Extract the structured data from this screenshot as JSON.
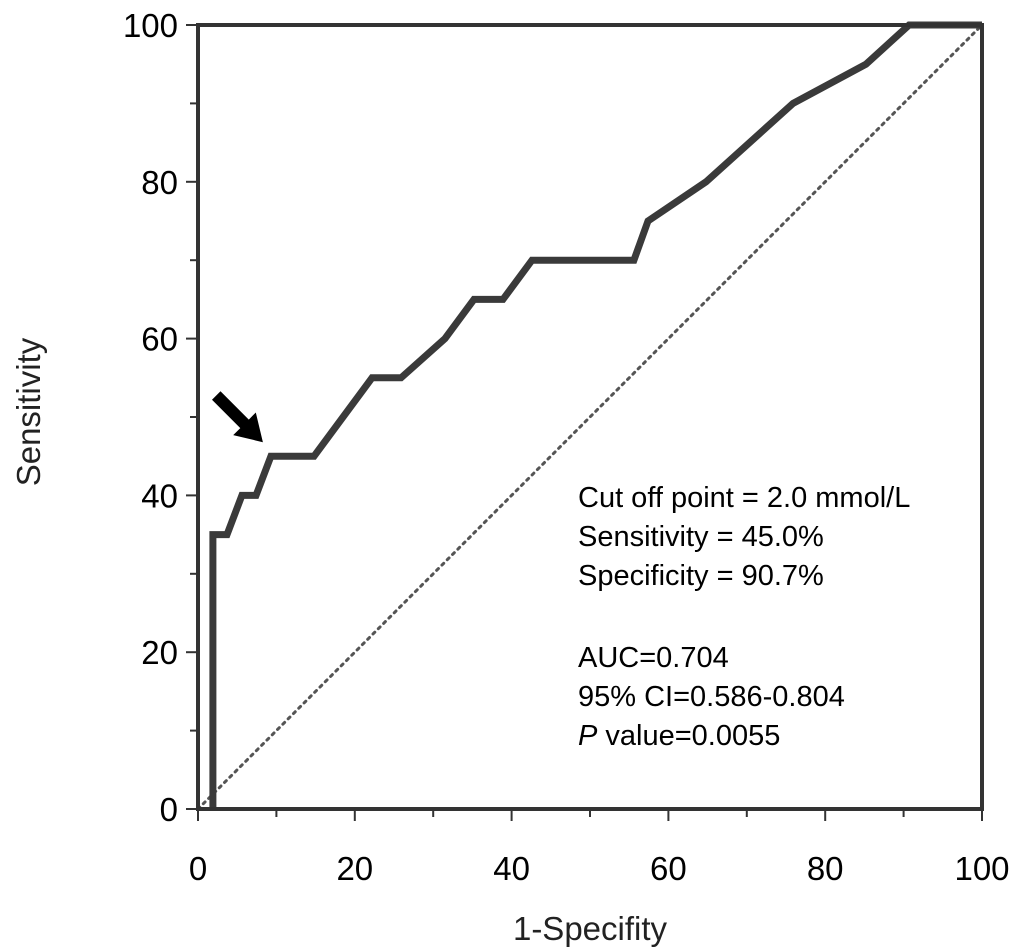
{
  "chart_data": {
    "type": "line",
    "title": "",
    "xlabel": "1-Specifity",
    "ylabel": "Sensitivity",
    "xlim": [
      0,
      100
    ],
    "ylim": [
      0,
      100
    ],
    "x_ticks": [
      "0",
      "20",
      "40",
      "60",
      "80",
      "100"
    ],
    "y_ticks": [
      "0",
      "20",
      "40",
      "60",
      "80",
      "100"
    ],
    "grid": false,
    "legend": "none",
    "series": [
      {
        "name": "",
        "color": "#3a3a3a",
        "points": [
          [
            1.9,
            0
          ],
          [
            1.9,
            35
          ],
          [
            3.7,
            35
          ],
          [
            5.6,
            40
          ],
          [
            7.4,
            40
          ],
          [
            9.3,
            45
          ],
          [
            14.8,
            45
          ],
          [
            22.2,
            55
          ],
          [
            25.9,
            55
          ],
          [
            31.5,
            60
          ],
          [
            35.2,
            65
          ],
          [
            38.9,
            65
          ],
          [
            42.6,
            70
          ],
          [
            55.6,
            70
          ],
          [
            57.4,
            75
          ],
          [
            64.8,
            80
          ],
          [
            75.9,
            90
          ],
          [
            85.2,
            95
          ],
          [
            90.7,
            100
          ],
          [
            100,
            100
          ]
        ]
      },
      {
        "name": "",
        "color": "#555555",
        "style": "dotted",
        "points": [
          [
            0,
            0
          ],
          [
            100,
            100
          ]
        ]
      }
    ],
    "marker": {
      "icon": "arrow-icon",
      "points_to": [
        9.3,
        45
      ]
    },
    "annotations": {
      "cutoff": "Cut off point = 2.0 mmol/L",
      "sensitivity": "Sensitivity = 45.0%",
      "specificity": "Specificity = 90.7%",
      "auc": "AUC=0.704",
      "ci": "95% CI=0.586-0.804",
      "p_italic": "P",
      "p_rest": " value=0.0055"
    }
  }
}
